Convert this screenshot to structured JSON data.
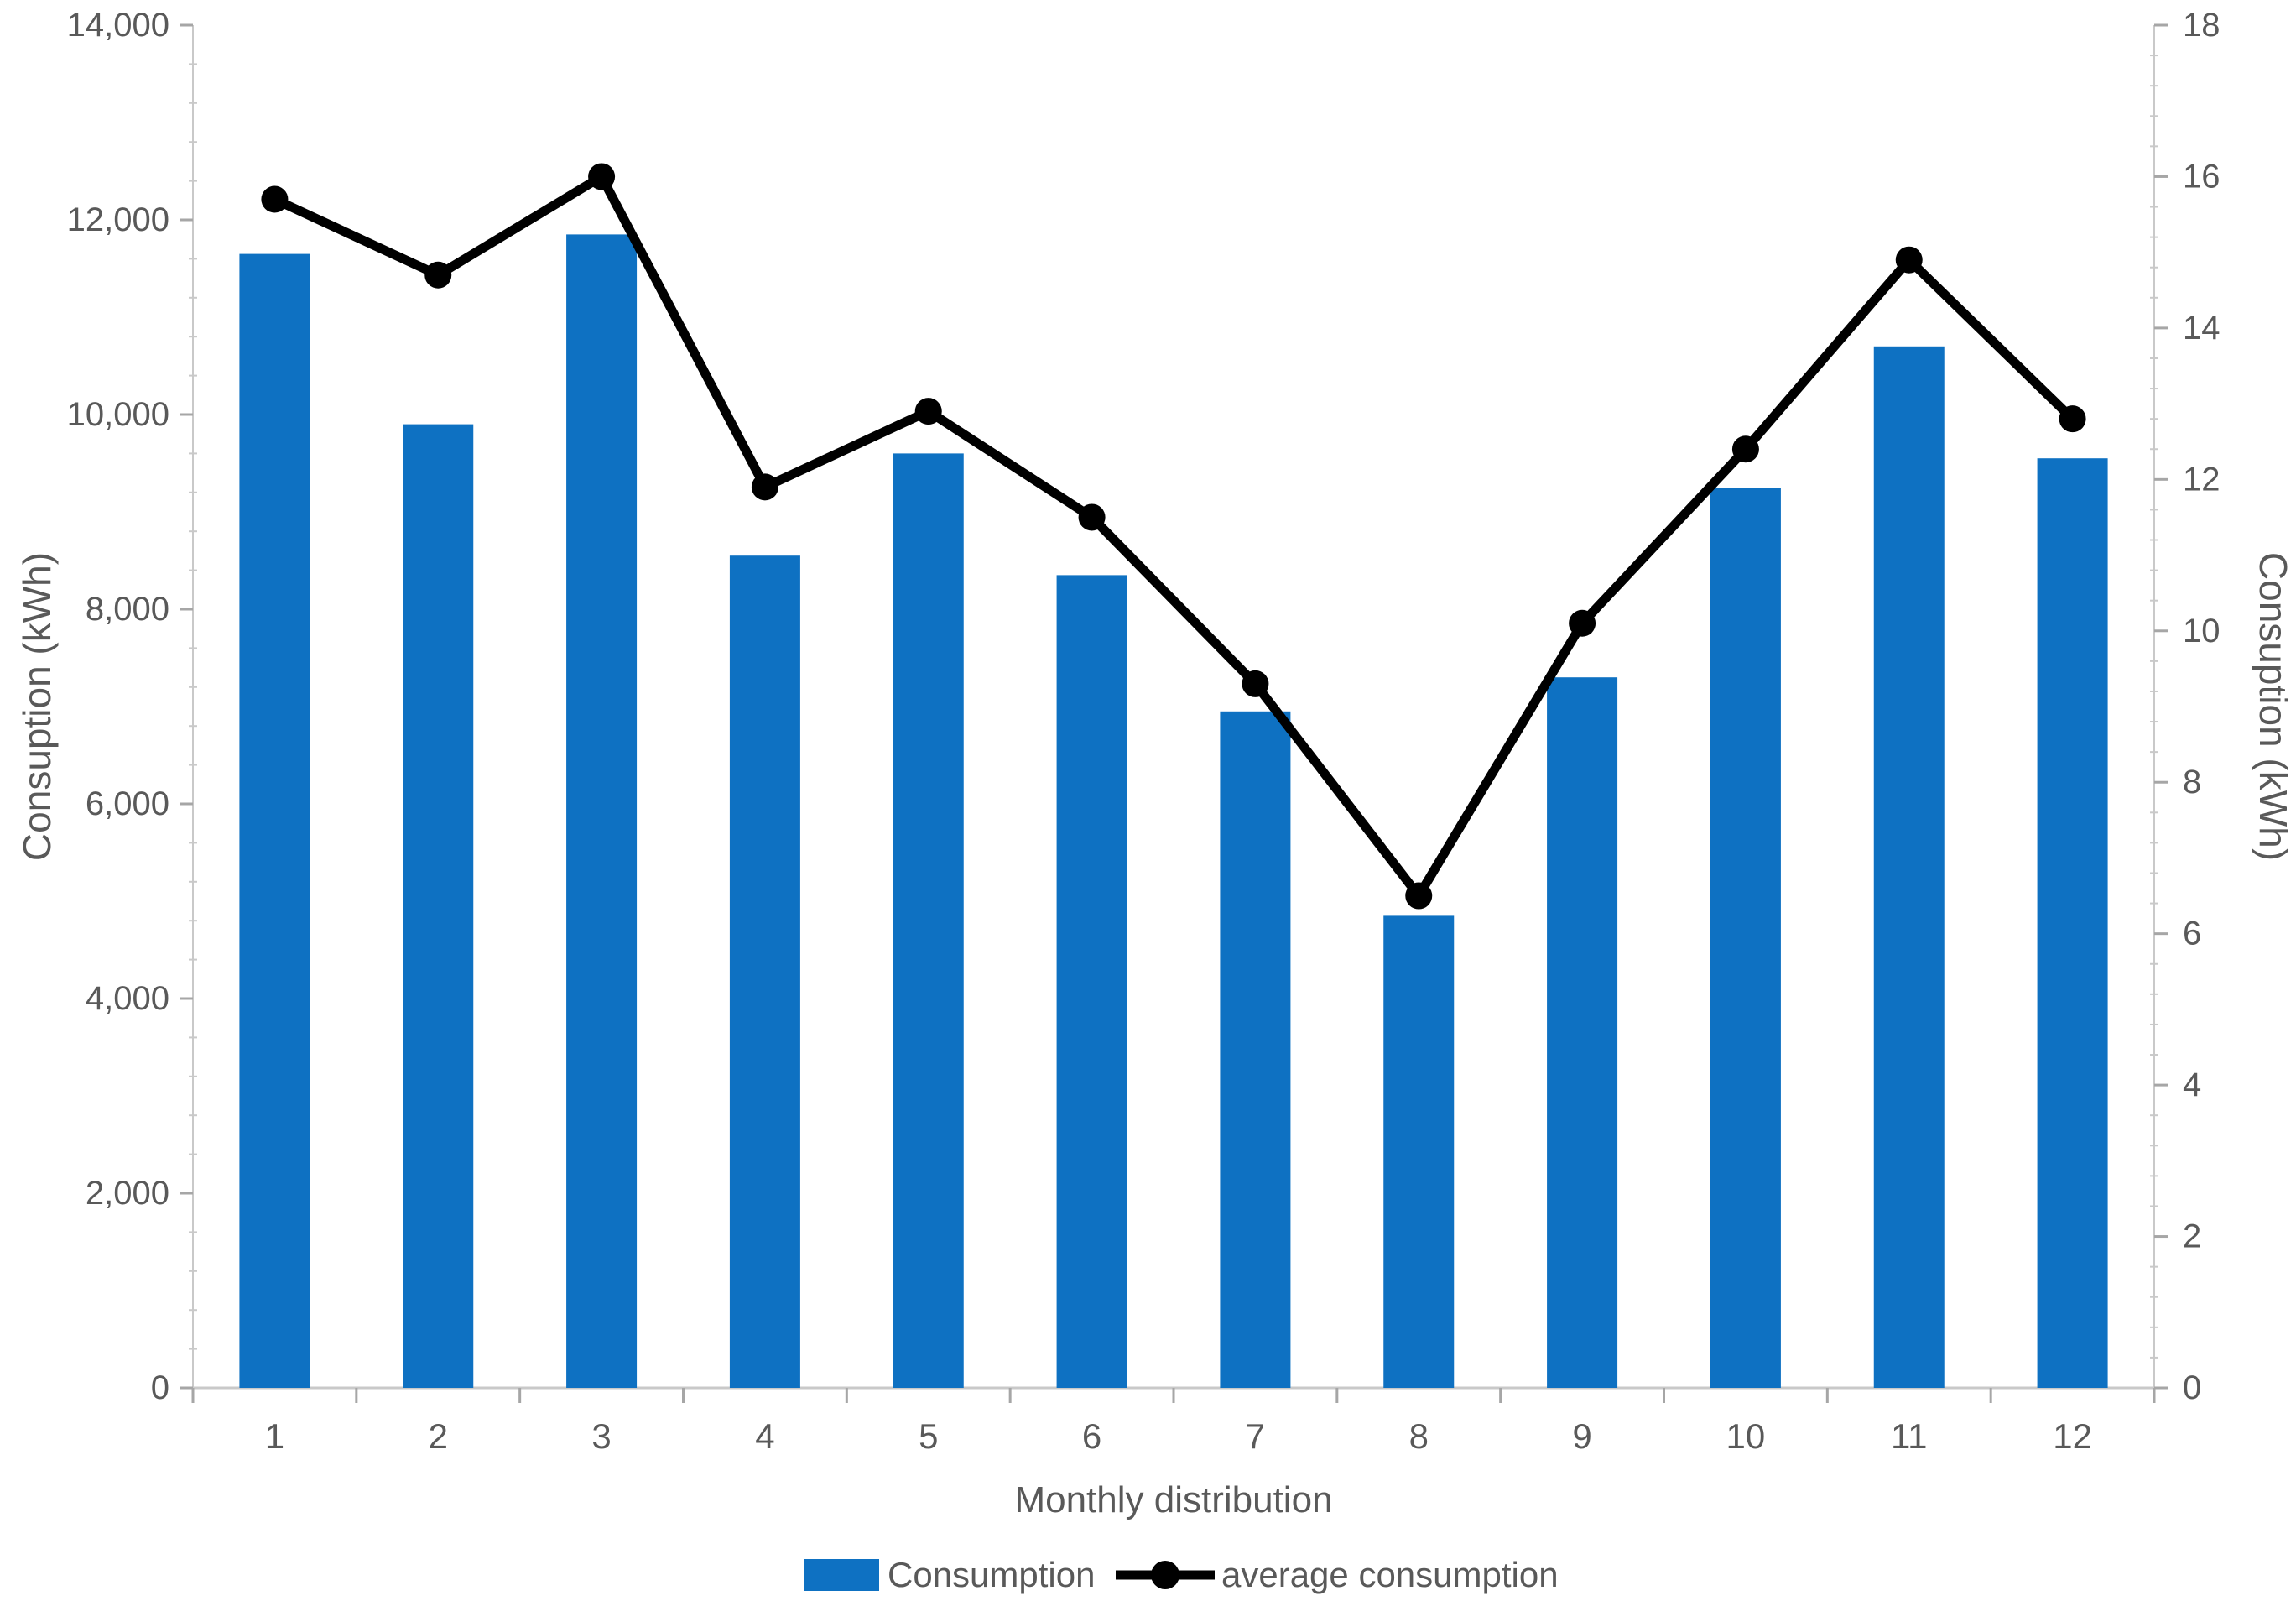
{
  "chart_data": {
    "type": "bar",
    "subtype": "combo-bar-line",
    "categories": [
      "1",
      "2",
      "3",
      "4",
      "5",
      "6",
      "7",
      "8",
      "9",
      "10",
      "11",
      "12"
    ],
    "series": [
      {
        "name": "Consumption",
        "type": "bar",
        "axis": "left",
        "color": "#0E71C2",
        "values": [
          11650,
          9900,
          11850,
          8550,
          9600,
          8350,
          6950,
          4850,
          7300,
          9250,
          10700,
          9550
        ]
      },
      {
        "name": "average consumption",
        "type": "line",
        "axis": "right",
        "color": "#000000",
        "marker": "circle",
        "values": [
          15.7,
          14.7,
          16.0,
          11.9,
          12.9,
          11.5,
          9.3,
          6.5,
          10.1,
          12.4,
          14.9,
          12.8
        ]
      }
    ],
    "title": "",
    "xlabel": "Monthly distribution",
    "ylabel_left": "Consuption (kWh)",
    "ylabel_right": "Consuption (kWh)",
    "ylim_left": [
      0,
      14000
    ],
    "ytick_step_left": 2000,
    "ylim_right": [
      0,
      18
    ],
    "ytick_step_right": 2,
    "grid": false,
    "legend_position": "bottom",
    "colors": {
      "axis_line": "#C9C9C9",
      "tick_mark": "#A6A6A6",
      "tick_label": "#595959",
      "axis_title": "#595959"
    }
  }
}
